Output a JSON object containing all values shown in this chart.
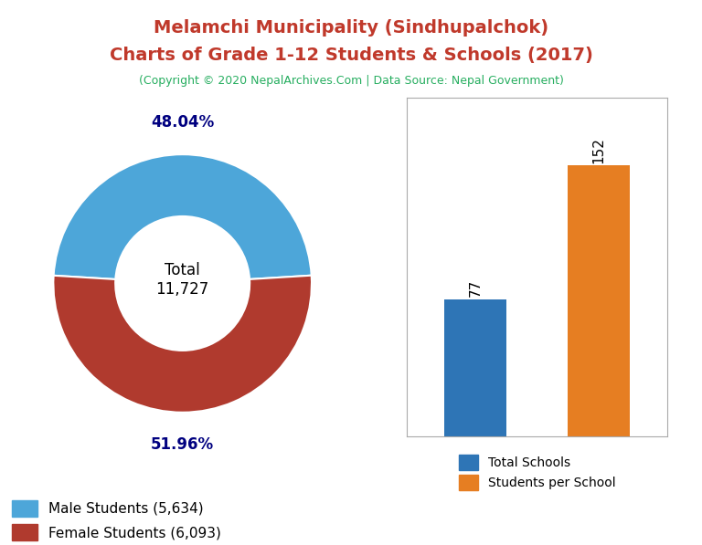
{
  "title_line1": "Melamchi Municipality (Sindhupalchok)",
  "title_line2": "Charts of Grade 1-12 Students & Schools (2017)",
  "copyright": "(Copyright © 2020 NepalArchives.Com | Data Source: Nepal Government)",
  "title_color": "#c0392b",
  "copyright_color": "#27ae60",
  "donut_values": [
    5634,
    6093
  ],
  "donut_colors": [
    "#4da6d9",
    "#b03a2e"
  ],
  "donut_labels": [
    "48.04%",
    "51.96%"
  ],
  "donut_center_text": "Total\n11,727",
  "legend_labels": [
    "Male Students (5,634)",
    "Female Students (6,093)"
  ],
  "bar_values": [
    77,
    152
  ],
  "bar_colors": [
    "#2e75b6",
    "#e67e22"
  ],
  "bar_legend_labels": [
    "Total Schools",
    "Students per School"
  ],
  "label_color_donut": "#000080",
  "background_color": "#ffffff"
}
